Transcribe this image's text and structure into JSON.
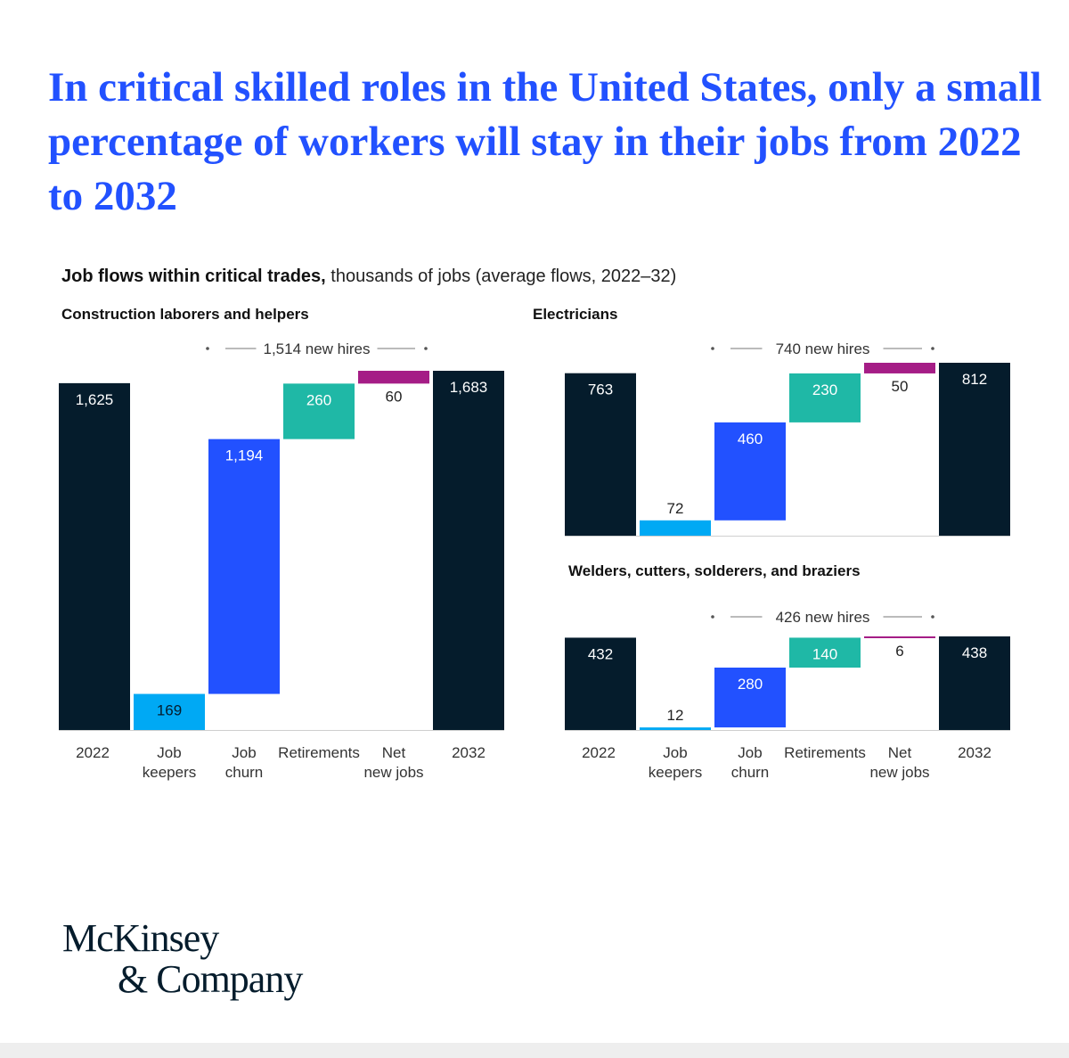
{
  "headline": "In critical skilled roles in the United States, only a small percentage of workers will stay in their jobs from 2022 to 2032",
  "subtitle": {
    "bold": "Job flows within critical trades,",
    "rest": " thousands of jobs (average flows, 2022–32)"
  },
  "logo": {
    "line1": "McKinsey",
    "line2": "& Company"
  },
  "colors": {
    "dark": "#051c2c",
    "keepers": "#00a9f4",
    "churn": "#2251ff",
    "retirements": "#1fb8a6",
    "net_new": "#a51d86"
  },
  "chart_data": [
    {
      "type": "bar",
      "title": "Construction laborers and helpers",
      "bracket_label": "1,514 new hires",
      "categories": [
        "2022",
        "Job keepers",
        "Job churn",
        "Retirements",
        "Net new jobs",
        "2032"
      ],
      "values": [
        1625,
        169,
        1194,
        260,
        60,
        1683
      ],
      "value_labels": [
        "1,625",
        "169",
        "1,194",
        "260",
        "60",
        "1,683"
      ],
      "ylim": [
        0,
        1683
      ]
    },
    {
      "type": "bar",
      "title": "Electricians",
      "bracket_label": "740 new hires",
      "categories": [
        "2022",
        "Job keepers",
        "Job churn",
        "Retirements",
        "Net new jobs",
        "2032"
      ],
      "values": [
        763,
        72,
        460,
        230,
        50,
        812
      ],
      "value_labels": [
        "763",
        "72",
        "460",
        "230",
        "50",
        "812"
      ],
      "ylim": [
        0,
        812
      ]
    },
    {
      "type": "bar",
      "title": "Welders, cutters, solderers, and braziers",
      "bracket_label": "426 new hires",
      "categories": [
        "2022",
        "Job keepers",
        "Job churn",
        "Retirements",
        "Net new jobs",
        "2032"
      ],
      "values": [
        432,
        12,
        280,
        140,
        6,
        438
      ],
      "value_labels": [
        "432",
        "12",
        "280",
        "140",
        "6",
        "438"
      ],
      "ylim": [
        0,
        438
      ]
    }
  ]
}
